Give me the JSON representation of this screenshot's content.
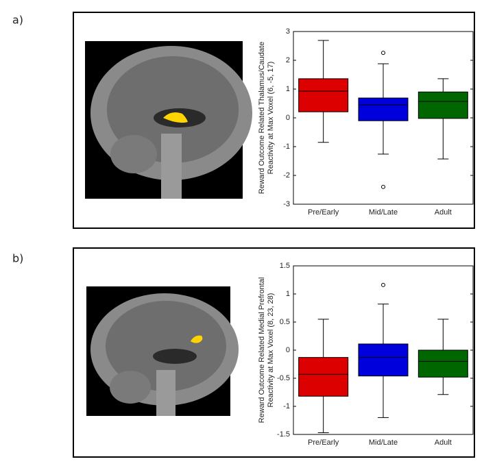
{
  "chart_data": [
    {
      "type": "box",
      "label": "a)",
      "ylabel": [
        "Reward Outcome Related Thalamus/Caudate",
        "Reactivity at Max Voxel (6, -5, 17)"
      ],
      "categories": [
        "Pre/Early",
        "Mid/Late",
        "Adult"
      ],
      "colors": [
        "#dd0000",
        "#0000dd",
        "#006600"
      ],
      "boxes": [
        {
          "whislo": -0.85,
          "q1": 0.21,
          "med": 0.93,
          "q3": 1.36,
          "whishi": 2.69,
          "fliers": []
        },
        {
          "whislo": -1.26,
          "q1": -0.1,
          "med": 0.45,
          "q3": 0.69,
          "whishi": 1.88,
          "fliers": [
            2.26,
            -2.4
          ]
        },
        {
          "whislo": -1.43,
          "q1": -0.02,
          "med": 0.57,
          "q3": 0.9,
          "whishi": 1.36,
          "fliers": []
        }
      ],
      "ylim": [
        -3,
        3
      ],
      "yticks": [
        -3,
        -2,
        -1,
        0,
        1,
        2,
        3
      ]
    },
    {
      "type": "box",
      "label": "b)",
      "ylabel": [
        "Reward Outcome Related Medial Prefrontal",
        "Reactivity at Max Voxel (8, 23, 28)"
      ],
      "categories": [
        "Pre/Early",
        "Mid/Late",
        "Adult"
      ],
      "colors": [
        "#dd0000",
        "#0000dd",
        "#006600"
      ],
      "boxes": [
        {
          "whislo": -1.47,
          "q1": -0.82,
          "med": -0.43,
          "q3": -0.13,
          "whishi": 0.55,
          "fliers": []
        },
        {
          "whislo": -1.2,
          "q1": -0.46,
          "med": -0.13,
          "q3": 0.11,
          "whishi": 0.82,
          "fliers": [
            1.16
          ]
        },
        {
          "whislo": -0.79,
          "q1": -0.48,
          "med": -0.2,
          "q3": 0,
          "whishi": 0.55,
          "fliers": []
        }
      ],
      "ylim": [
        -1.5,
        1.5
      ],
      "yticks": [
        -1.5,
        -1,
        -0.5,
        0,
        0.5,
        1,
        1.5
      ]
    }
  ]
}
